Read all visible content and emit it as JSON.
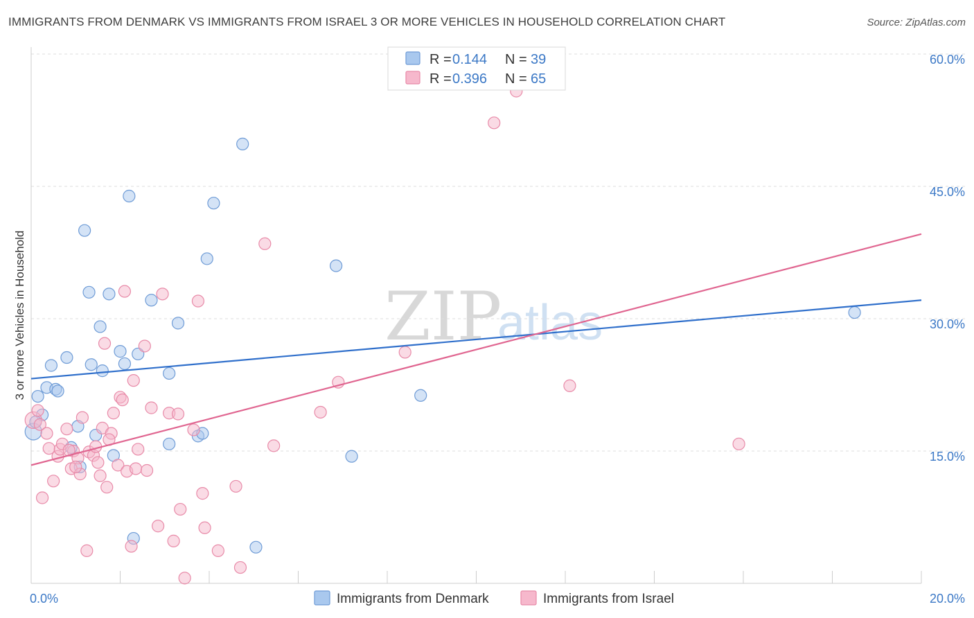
{
  "title": "IMMIGRANTS FROM DENMARK VS IMMIGRANTS FROM ISRAEL 3 OR MORE VEHICLES IN HOUSEHOLD CORRELATION CHART",
  "source": "Source: ZipAtlas.com",
  "watermark": {
    "zip": "ZIP",
    "atlas": "atlas"
  },
  "colors": {
    "denmark_fill": "#a9c8ee",
    "denmark_stroke": "#6e9bd6",
    "denmark_line": "#2f6fcb",
    "israel_fill": "#f6b8cc",
    "israel_stroke": "#e88aa8",
    "israel_line": "#e06590",
    "grid": "#dddddd",
    "tick_text": "#3b78c6"
  },
  "legend": {
    "rows": [
      {
        "r_label": "R =",
        "r_value": "0.144",
        "n_label": "N =",
        "n_value": "39"
      },
      {
        "r_label": "R =",
        "r_value": "0.396",
        "n_label": "N =",
        "n_value": "65"
      }
    ]
  },
  "chart_data": {
    "type": "scatter",
    "title": "IMMIGRANTS FROM DENMARK VS IMMIGRANTS FROM ISRAEL 3 OR MORE VEHICLES IN HOUSEHOLD CORRELATION CHART",
    "xlabel": "",
    "ylabel": "3 or more Vehicles in Household",
    "xlim": [
      0,
      20
    ],
    "ylim": [
      0,
      60
    ],
    "x_tick_labels": [
      "0.0%",
      "20.0%"
    ],
    "y_ticks": [
      15,
      30,
      45,
      60
    ],
    "y_tick_labels": [
      "15.0%",
      "30.0%",
      "45.0%",
      "60.0%"
    ],
    "grid": true,
    "legend_position": "top-center",
    "series": [
      {
        "name": "Immigrants from Denmark",
        "R": 0.144,
        "N": 39,
        "trend": {
          "x": [
            0,
            20
          ],
          "y": [
            23.2,
            32.1
          ]
        },
        "points": [
          [
            0.05,
            17.2
          ],
          [
            0.15,
            21.2
          ],
          [
            0.25,
            19.1
          ],
          [
            0.35,
            22.2
          ],
          [
            0.45,
            24.7
          ],
          [
            0.55,
            22.0
          ],
          [
            0.6,
            21.8
          ],
          [
            0.8,
            25.6
          ],
          [
            0.9,
            15.4
          ],
          [
            1.05,
            17.8
          ],
          [
            1.1,
            13.2
          ],
          [
            1.2,
            40.0
          ],
          [
            1.3,
            33.0
          ],
          [
            1.35,
            24.8
          ],
          [
            1.45,
            16.8
          ],
          [
            1.55,
            29.1
          ],
          [
            1.6,
            24.1
          ],
          [
            1.75,
            32.8
          ],
          [
            1.85,
            14.5
          ],
          [
            2.0,
            26.3
          ],
          [
            2.1,
            24.9
          ],
          [
            2.2,
            43.9
          ],
          [
            2.3,
            5.1
          ],
          [
            2.4,
            26.0
          ],
          [
            2.7,
            32.1
          ],
          [
            3.1,
            15.8
          ],
          [
            3.1,
            23.8
          ],
          [
            3.3,
            29.5
          ],
          [
            3.75,
            16.7
          ],
          [
            3.85,
            17.0
          ],
          [
            3.95,
            36.8
          ],
          [
            4.1,
            43.1
          ],
          [
            4.75,
            49.8
          ],
          [
            5.05,
            4.1
          ],
          [
            6.85,
            36.0
          ],
          [
            7.2,
            14.4
          ],
          [
            8.75,
            21.3
          ],
          [
            18.5,
            30.7
          ],
          [
            0.1,
            18.3
          ]
        ]
      },
      {
        "name": "Immigrants from Israel",
        "R": 0.396,
        "N": 65,
        "trend": {
          "x": [
            0,
            20
          ],
          "y": [
            13.4,
            39.6
          ]
        },
        "points": [
          [
            0.05,
            18.5
          ],
          [
            0.15,
            19.6
          ],
          [
            0.2,
            18.0
          ],
          [
            0.25,
            9.7
          ],
          [
            0.35,
            17.0
          ],
          [
            0.4,
            15.3
          ],
          [
            0.5,
            11.6
          ],
          [
            0.6,
            14.4
          ],
          [
            0.65,
            15.2
          ],
          [
            0.7,
            15.8
          ],
          [
            0.8,
            17.5
          ],
          [
            0.9,
            13.0
          ],
          [
            0.95,
            15.0
          ],
          [
            1.05,
            14.2
          ],
          [
            1.1,
            12.4
          ],
          [
            1.15,
            18.8
          ],
          [
            1.25,
            3.7
          ],
          [
            1.3,
            14.9
          ],
          [
            1.4,
            14.5
          ],
          [
            1.45,
            15.5
          ],
          [
            1.5,
            13.7
          ],
          [
            1.55,
            12.2
          ],
          [
            1.6,
            17.6
          ],
          [
            1.65,
            27.2
          ],
          [
            1.7,
            10.9
          ],
          [
            1.8,
            17.0
          ],
          [
            1.85,
            19.3
          ],
          [
            1.95,
            13.4
          ],
          [
            2.0,
            21.1
          ],
          [
            2.05,
            20.8
          ],
          [
            2.1,
            33.1
          ],
          [
            2.15,
            12.7
          ],
          [
            2.25,
            4.2
          ],
          [
            2.3,
            23.0
          ],
          [
            2.35,
            13.0
          ],
          [
            2.4,
            15.2
          ],
          [
            2.55,
            26.9
          ],
          [
            2.7,
            19.9
          ],
          [
            2.85,
            6.5
          ],
          [
            2.95,
            32.8
          ],
          [
            3.1,
            19.3
          ],
          [
            3.2,
            4.8
          ],
          [
            3.3,
            19.2
          ],
          [
            3.35,
            8.4
          ],
          [
            3.45,
            0.6
          ],
          [
            3.65,
            17.4
          ],
          [
            3.75,
            32.0
          ],
          [
            3.85,
            10.2
          ],
          [
            3.9,
            6.3
          ],
          [
            4.2,
            3.7
          ],
          [
            4.6,
            11.0
          ],
          [
            4.7,
            1.8
          ],
          [
            5.25,
            38.5
          ],
          [
            5.45,
            15.6
          ],
          [
            6.5,
            19.4
          ],
          [
            6.9,
            22.8
          ],
          [
            8.4,
            26.2
          ],
          [
            10.4,
            52.2
          ],
          [
            10.9,
            55.8
          ],
          [
            12.1,
            22.4
          ],
          [
            15.9,
            15.8
          ],
          [
            0.85,
            15.1
          ],
          [
            1.0,
            13.2
          ],
          [
            2.6,
            12.8
          ],
          [
            1.75,
            16.3
          ]
        ]
      }
    ]
  },
  "bottom_legend": [
    {
      "label": "Immigrants from Denmark"
    },
    {
      "label": "Immigrants from Israel"
    }
  ]
}
